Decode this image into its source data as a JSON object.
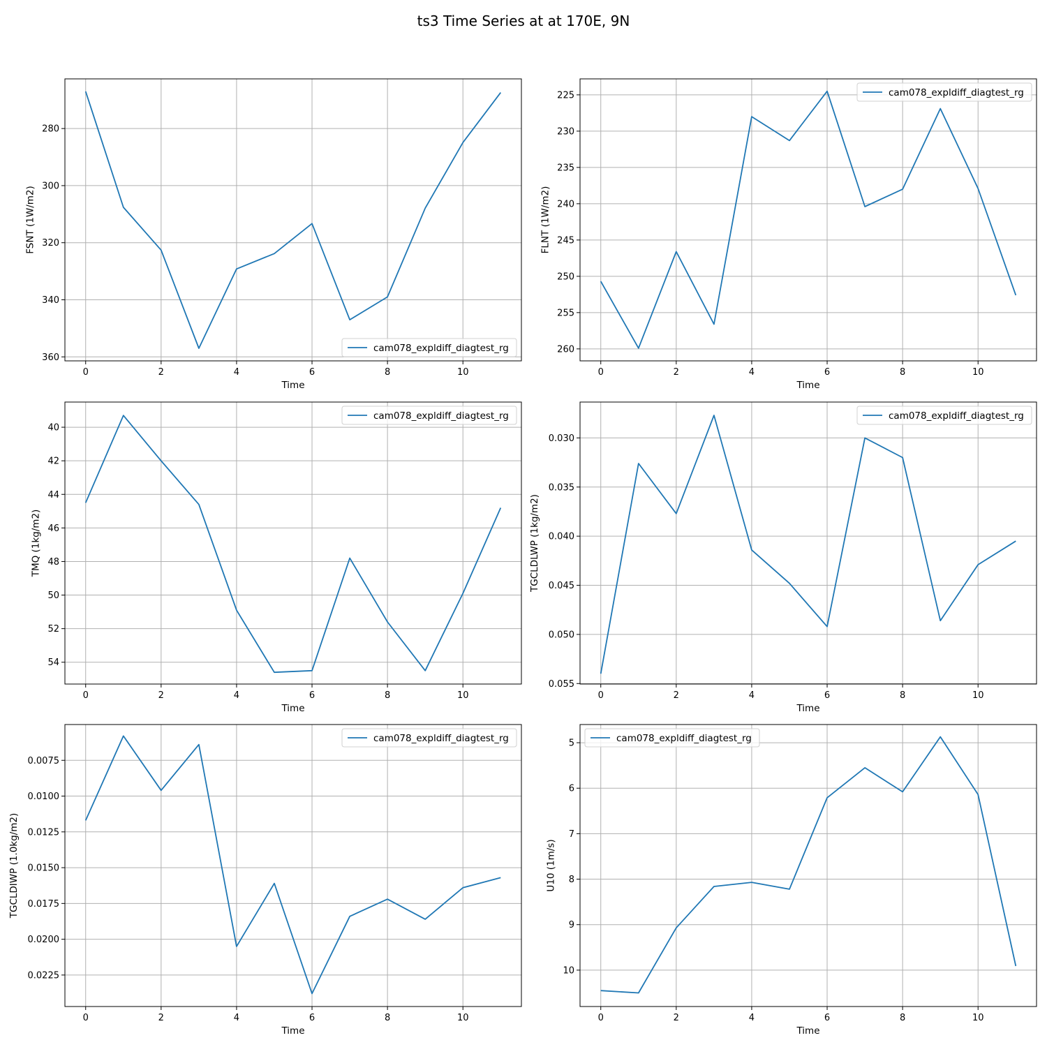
{
  "figure": {
    "title": "ts3 Time Series at at 170E, 9N",
    "line_color": "#1f77b4",
    "grid": true
  },
  "chart_data": [
    {
      "type": "line",
      "xlabel": "Time",
      "ylabel": "FSNT (1W/m2)",
      "y_inverted": true,
      "xlim": [
        -0.55,
        11.55
      ],
      "ylim": [
        361.4,
        262.6
      ],
      "xticks": [
        0,
        2,
        4,
        6,
        8,
        10
      ],
      "yticks": [
        280,
        300,
        320,
        340,
        360
      ],
      "legend_loc": "bottom-right",
      "series": [
        {
          "name": "cam078_expldiff_diagtest_rg",
          "x": [
            0,
            1,
            2,
            3,
            4,
            5,
            6,
            7,
            8,
            9,
            10,
            11
          ],
          "y": [
            267.0,
            307.6,
            322.6,
            357.0,
            329.2,
            323.8,
            313.3,
            347.0,
            339.0,
            307.9,
            284.9,
            267.4
          ]
        }
      ]
    },
    {
      "type": "line",
      "xlabel": "Time",
      "ylabel": "FLNT (1W/m2)",
      "y_inverted": true,
      "xlim": [
        -0.55,
        11.55
      ],
      "ylim": [
        261.65,
        222.8
      ],
      "xticks": [
        0,
        2,
        4,
        6,
        8,
        10
      ],
      "yticks": [
        225,
        230,
        235,
        240,
        245,
        250,
        255,
        260
      ],
      "legend_loc": "top-right",
      "series": [
        {
          "name": "cam078_expldiff_diagtest_rg",
          "x": [
            0,
            1,
            2,
            3,
            4,
            5,
            6,
            7,
            8,
            9,
            10,
            11
          ],
          "y": [
            250.7,
            259.9,
            246.6,
            256.6,
            228.0,
            231.3,
            224.5,
            240.4,
            238.0,
            226.9,
            237.9,
            252.6
          ]
        }
      ]
    },
    {
      "type": "line",
      "xlabel": "Time",
      "ylabel": "TMQ (1kg/m2)",
      "y_inverted": true,
      "xlim": [
        -0.55,
        11.55
      ],
      "ylim": [
        55.3,
        38.5
      ],
      "xticks": [
        0,
        2,
        4,
        6,
        8,
        10
      ],
      "yticks": [
        40,
        42,
        44,
        46,
        48,
        50,
        52,
        54
      ],
      "legend_loc": "top-right",
      "series": [
        {
          "name": "cam078_expldiff_diagtest_rg",
          "x": [
            0,
            1,
            2,
            3,
            4,
            5,
            6,
            7,
            8,
            9,
            10,
            11
          ],
          "y": [
            44.5,
            39.3,
            42.0,
            44.6,
            50.9,
            54.6,
            54.5,
            47.8,
            51.6,
            54.5,
            49.9,
            44.8
          ]
        }
      ]
    },
    {
      "type": "line",
      "xlabel": "Time",
      "ylabel": "TGCLDLWP (1kg/m2)",
      "y_inverted": true,
      "xlim": [
        -0.55,
        11.55
      ],
      "ylim": [
        0.05505,
        0.02635
      ],
      "xticks": [
        0,
        2,
        4,
        6,
        8,
        10
      ],
      "yticks": [
        0.03,
        0.035,
        0.04,
        0.045,
        0.05,
        0.055
      ],
      "ytick_labels": [
        "0.030",
        "0.035",
        "0.040",
        "0.045",
        "0.050",
        "0.055"
      ],
      "legend_loc": "top-right",
      "series": [
        {
          "name": "cam078_expldiff_diagtest_rg",
          "x": [
            0,
            1,
            2,
            3,
            4,
            5,
            6,
            7,
            8,
            9,
            10,
            11
          ],
          "y": [
            0.054,
            0.0326,
            0.0377,
            0.0277,
            0.0414,
            0.0448,
            0.0492,
            0.03,
            0.032,
            0.0486,
            0.0429,
            0.0405
          ]
        }
      ]
    },
    {
      "type": "line",
      "xlabel": "Time",
      "ylabel": "TGCLDIWP (1.0kg/m2)",
      "y_inverted": true,
      "xlim": [
        -0.55,
        11.55
      ],
      "ylim": [
        0.0247,
        0.005
      ],
      "xticks": [
        0,
        2,
        4,
        6,
        8,
        10
      ],
      "yticks": [
        0.0075,
        0.01,
        0.0125,
        0.015,
        0.0175,
        0.02,
        0.0225
      ],
      "ytick_labels": [
        "0.0075",
        "0.0100",
        "0.0125",
        "0.0150",
        "0.0175",
        "0.0200",
        "0.0225"
      ],
      "legend_loc": "top-right",
      "series": [
        {
          "name": "cam078_expldiff_diagtest_rg",
          "x": [
            0,
            1,
            2,
            3,
            4,
            5,
            6,
            7,
            8,
            9,
            10,
            11
          ],
          "y": [
            0.0117,
            0.0058,
            0.0096,
            0.0064,
            0.0205,
            0.0161,
            0.0238,
            0.0184,
            0.0172,
            0.0186,
            0.0164,
            0.0157
          ]
        }
      ]
    },
    {
      "type": "line",
      "xlabel": "Time",
      "ylabel": "U10 (1m/s)",
      "y_inverted": true,
      "xlim": [
        -0.55,
        11.55
      ],
      "ylim": [
        10.8,
        4.6
      ],
      "xticks": [
        0,
        2,
        4,
        6,
        8,
        10
      ],
      "yticks": [
        5,
        6,
        7,
        8,
        9,
        10
      ],
      "legend_loc": "top-left",
      "series": [
        {
          "name": "cam078_expldiff_diagtest_rg",
          "x": [
            0,
            1,
            2,
            3,
            4,
            5,
            6,
            7,
            8,
            9,
            10,
            11
          ],
          "y": [
            10.45,
            10.5,
            9.07,
            8.16,
            8.07,
            8.22,
            6.21,
            5.55,
            6.08,
            4.87,
            6.14,
            9.91
          ]
        }
      ]
    }
  ]
}
